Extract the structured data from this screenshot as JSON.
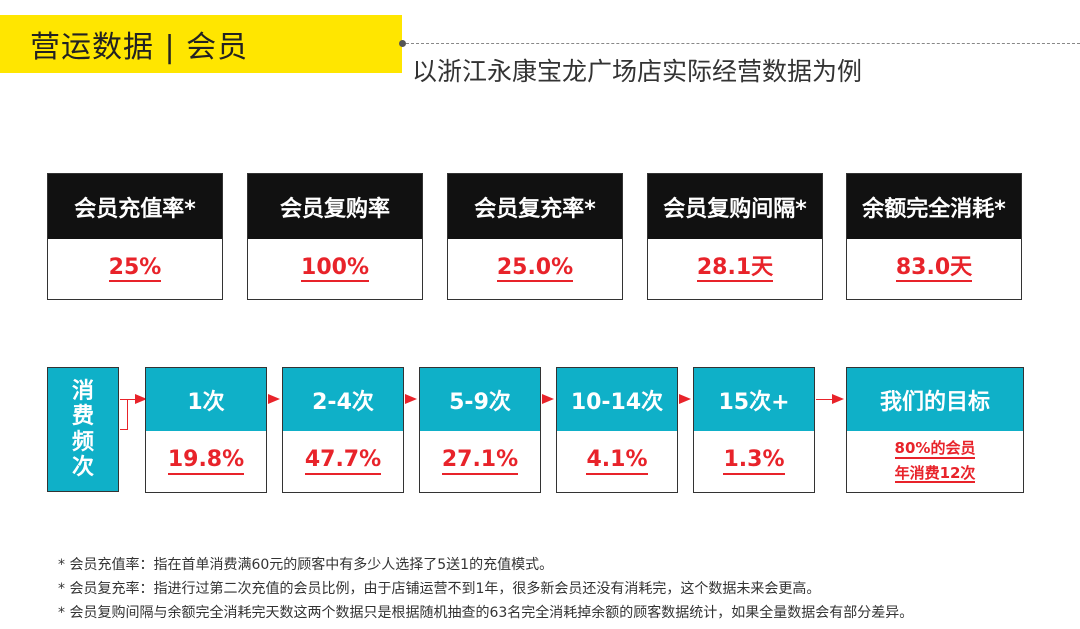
{
  "header": {
    "title": "营运数据 | 会员",
    "subtitle": "以浙江永康宝龙广场店实际经营数据为例"
  },
  "metrics": [
    {
      "label": "会员充值率*",
      "value": "25%"
    },
    {
      "label": "会员复购率",
      "value": "100%"
    },
    {
      "label": "会员复充率*",
      "value": "25.0%"
    },
    {
      "label": "会员复购间隔*",
      "value": "28.1天"
    },
    {
      "label": "余额完全消耗*",
      "value": "83.0天"
    }
  ],
  "frequency": {
    "label": "消费频次",
    "items": [
      {
        "label": "1次",
        "value": "19.8%"
      },
      {
        "label": "2-4次",
        "value": "47.7%"
      },
      {
        "label": "5-9次",
        "value": "27.1%"
      },
      {
        "label": "10-14次",
        "value": "4.1%"
      },
      {
        "label": "15次+",
        "value": "1.3%"
      }
    ],
    "goal": {
      "label": "我们的目标",
      "line1": "80%的会员",
      "line2": "年消费12次"
    }
  },
  "notes": [
    "* 会员充值率：指在首单消费满60元的顾客中有多少人选择了5送1的充值模式。",
    "* 会员复充率：指进行过第二次充值的会员比例，由于店铺运营不到1年，很多新会员还没有消耗完，这个数据未来会更高。",
    "* 会员复购间隔与余额完全消耗完天数这两个数据只是根据随机抽查的63名完全消耗掉余额的顾客数据统计，如果全量数据会有部分差异。"
  ],
  "colors": {
    "accent_yellow": "#ffe600",
    "teal": "#0fb0c8",
    "red": "#e8232a",
    "dark": "#111111"
  }
}
